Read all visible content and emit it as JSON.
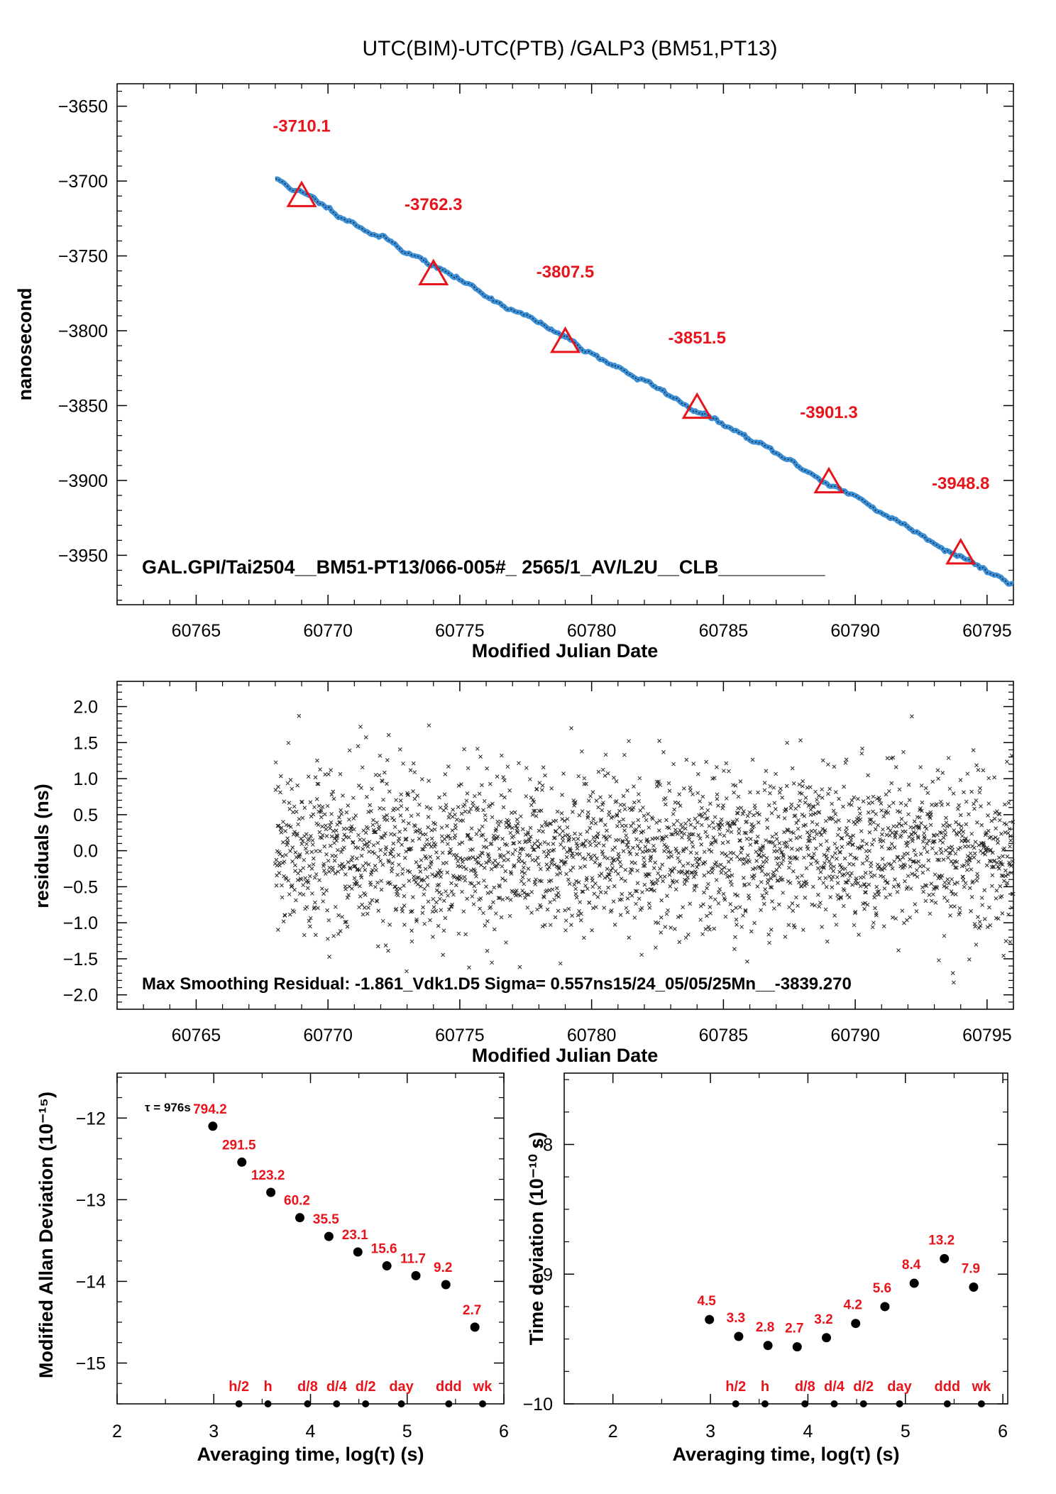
{
  "page": {
    "title": "UTC(BIM)-UTC(PTB)  /GALP3  (BM51,PT13)"
  },
  "colors": {
    "red": "#e8141c",
    "trace_blue": "#3a8fd6",
    "marker_black": "#000000"
  },
  "chart_data": [
    {
      "type": "line",
      "name_key": "time_series",
      "xlabel": "Modified Julian Date",
      "ylabel": "nanosecond",
      "xlim": [
        60762,
        60796
      ],
      "ylim": [
        -3983,
        -3635
      ],
      "xticks": [
        60765,
        60770,
        60775,
        60780,
        60785,
        60790,
        60795
      ],
      "xtick_labels": [
        "60765",
        "60770",
        "60775",
        "60780",
        "60785",
        "60790",
        "60795"
      ],
      "yticks": [
        -3650,
        -3700,
        -3750,
        -3800,
        -3850,
        -3900,
        -3950
      ],
      "ytick_labels": [
        "−3650",
        "−3700",
        "−3750",
        "−3800",
        "−3850",
        "−3900",
        "−3950"
      ],
      "trace": {
        "x_start": 60768.0,
        "x_end": 60796.0,
        "y_start": -3698.5,
        "y_end": -3969.5
      },
      "markers": [
        {
          "x": 60769,
          "y": -3710.1,
          "label": "-3710.1"
        },
        {
          "x": 60774,
          "y": -3762.3,
          "label": "-3762.3"
        },
        {
          "x": 60779,
          "y": -3807.5,
          "label": "-3807.5"
        },
        {
          "x": 60784,
          "y": -3851.5,
          "label": "-3851.5"
        },
        {
          "x": 60789,
          "y": -3901.3,
          "label": "-3901.3"
        },
        {
          "x": 60794,
          "y": -3948.8,
          "label": "-3948.8"
        }
      ],
      "annotation": "GAL.GPI/Tai2504__BM51-PT13/066-005#_  2565/1_AV/L2U__CLB__________"
    },
    {
      "type": "scatter",
      "name_key": "residuals",
      "xlabel": "Modified Julian Date",
      "ylabel": "residuals (ns)",
      "xlim": [
        60762,
        60796
      ],
      "ylim": [
        -2.2,
        2.35
      ],
      "xticks": [
        60765,
        60770,
        60775,
        60780,
        60785,
        60790,
        60795
      ],
      "xtick_labels": [
        "60765",
        "60770",
        "60775",
        "60780",
        "60785",
        "60790",
        "60795"
      ],
      "yticks": [
        2.0,
        1.5,
        1.0,
        0.5,
        0.0,
        -0.5,
        -1.0,
        -1.5,
        -2.0
      ],
      "ytick_labels": [
        "2.0",
        "1.5",
        "1.0",
        "0.5",
        "0.0",
        "−0.5",
        "−1.0",
        "−1.5",
        "−2.0"
      ],
      "x_range_of_points": [
        60768.0,
        60796.0
      ],
      "sigma_ns": 0.557,
      "max_residual_ns": -1.861,
      "annotation": "Max Smoothing Residual: -1.861_Vdk1.D5  Sigma= 0.557ns15/24_05/05/25Mn__-3839.270"
    },
    {
      "type": "scatter",
      "name_key": "mdev",
      "xlabel": "Averaging time, log(τ) (s)",
      "ylabel": "Modified Allan Deviation (10⁻¹⁵)",
      "xlim": [
        2,
        6
      ],
      "ylim": [
        -15.5,
        -11.45
      ],
      "xticks": [
        2,
        3,
        4,
        5,
        6
      ],
      "xtick_labels": [
        "2",
        "3",
        "4",
        "5",
        "6"
      ],
      "yticks": [
        -12,
        -13,
        -14,
        -15
      ],
      "ytick_labels": [
        "−12",
        "−13",
        "−14",
        "−15"
      ],
      "tau_note": "τ = 976s",
      "points": [
        {
          "x": 2.99,
          "y": -12.1,
          "label": "794.2"
        },
        {
          "x": 3.29,
          "y": -12.54,
          "label": "291.5"
        },
        {
          "x": 3.59,
          "y": -12.91,
          "label": "123.2"
        },
        {
          "x": 3.89,
          "y": -13.22,
          "label": "60.2"
        },
        {
          "x": 4.19,
          "y": -13.45,
          "label": "35.5"
        },
        {
          "x": 4.49,
          "y": -13.64,
          "label": "23.1"
        },
        {
          "x": 4.79,
          "y": -13.81,
          "label": "15.6"
        },
        {
          "x": 5.09,
          "y": -13.93,
          "label": "11.7"
        },
        {
          "x": 5.4,
          "y": -14.04,
          "label": "9.2"
        },
        {
          "x": 5.7,
          "y": -14.56,
          "label": "2.7"
        }
      ],
      "time_markers": [
        {
          "x": 3.26,
          "label": "h/2"
        },
        {
          "x": 3.56,
          "label": "h"
        },
        {
          "x": 3.97,
          "label": "d/8"
        },
        {
          "x": 4.27,
          "label": "d/4"
        },
        {
          "x": 4.57,
          "label": "d/2"
        },
        {
          "x": 4.94,
          "label": "day"
        },
        {
          "x": 5.43,
          "label": "ddd"
        },
        {
          "x": 5.78,
          "label": "wk"
        }
      ]
    },
    {
      "type": "scatter",
      "name_key": "tdev",
      "xlabel": "Averaging time, log(τ) (s)",
      "ylabel": "Time deviation (10⁻¹⁰ s)",
      "xlim": [
        1.5,
        6.05
      ],
      "ylim": [
        -10,
        -7.45
      ],
      "xticks": [
        2,
        3,
        4,
        5,
        6
      ],
      "xtick_labels": [
        "2",
        "3",
        "4",
        "5",
        "6"
      ],
      "yticks": [
        -8,
        -9,
        -10
      ],
      "ytick_labels": [
        "−8",
        "−9",
        "−10"
      ],
      "points": [
        {
          "x": 2.99,
          "y": -9.35,
          "label": "4.5"
        },
        {
          "x": 3.29,
          "y": -9.48,
          "label": "3.3"
        },
        {
          "x": 3.59,
          "y": -9.55,
          "label": "2.8"
        },
        {
          "x": 3.89,
          "y": -9.56,
          "label": "2.7"
        },
        {
          "x": 4.19,
          "y": -9.49,
          "label": "3.2"
        },
        {
          "x": 4.49,
          "y": -9.38,
          "label": "4.2"
        },
        {
          "x": 4.79,
          "y": -9.25,
          "label": "5.6"
        },
        {
          "x": 5.09,
          "y": -9.07,
          "label": "8.4"
        },
        {
          "x": 5.4,
          "y": -8.88,
          "label": "13.2"
        },
        {
          "x": 5.7,
          "y": -9.1,
          "label": "7.9"
        }
      ],
      "time_markers": [
        {
          "x": 3.26,
          "label": "h/2"
        },
        {
          "x": 3.56,
          "label": "h"
        },
        {
          "x": 3.97,
          "label": "d/8"
        },
        {
          "x": 4.27,
          "label": "d/4"
        },
        {
          "x": 4.57,
          "label": "d/2"
        },
        {
          "x": 4.94,
          "label": "day"
        },
        {
          "x": 5.43,
          "label": "ddd"
        },
        {
          "x": 5.78,
          "label": "wk"
        }
      ]
    }
  ]
}
